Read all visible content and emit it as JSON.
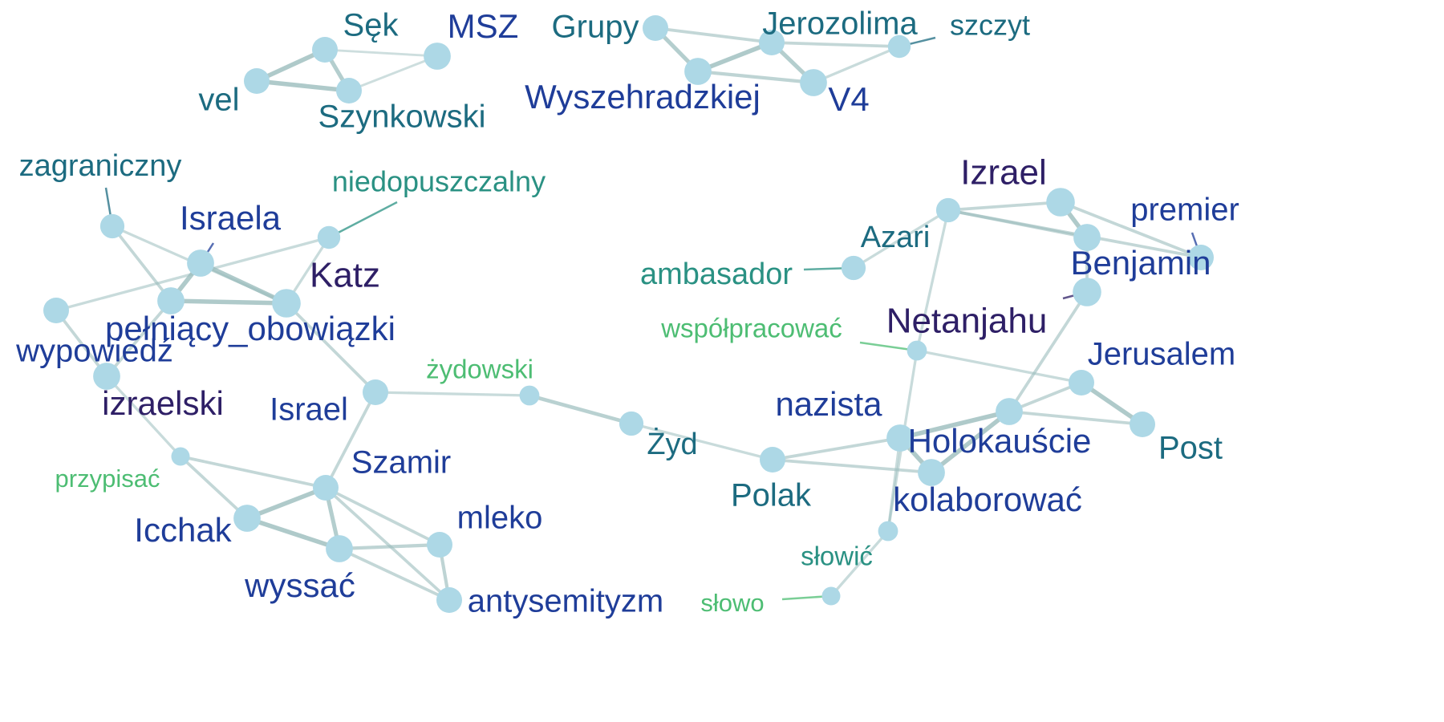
{
  "colors": {
    "node": "#add8e6",
    "edge": "#9bbdbd",
    "label_navy": "#1f3d99",
    "label_teal": "#1c6b80",
    "label_sea": "#2a9183",
    "label_green": "#4dbd73",
    "label_indigo": "#2e1f66"
  },
  "nodes": [
    {
      "id": "sek",
      "label": "Sęk",
      "size": 1.0,
      "color": "label_teal"
    },
    {
      "id": "msz",
      "label": "MSZ",
      "size": 1.1,
      "color": "label_navy"
    },
    {
      "id": "vel",
      "label": "vel",
      "size": 1.0,
      "color": "label_teal"
    },
    {
      "id": "szynkowski",
      "label": "Szynkowski",
      "size": 1.0,
      "color": "label_teal"
    },
    {
      "id": "grupy",
      "label": "Grupy",
      "size": 1.0,
      "color": "label_teal"
    },
    {
      "id": "jerozolima",
      "label": "Jerozolima",
      "size": 1.0,
      "color": "label_teal"
    },
    {
      "id": "szczyt",
      "label": "szczyt",
      "size": 0.8,
      "color": "label_teal"
    },
    {
      "id": "wyszehradzkiej",
      "label": "Wyszehradzkiej",
      "size": 1.1,
      "color": "label_navy"
    },
    {
      "id": "v4",
      "label": "V4",
      "size": 1.1,
      "color": "label_navy"
    },
    {
      "id": "zagraniczny",
      "label": "zagraniczny",
      "size": 0.9,
      "color": "label_teal"
    },
    {
      "id": "niedopuszczalny",
      "label": "niedopuszczalny",
      "size": 0.8,
      "color": "label_sea"
    },
    {
      "id": "israela",
      "label": "Israela",
      "size": 1.1,
      "color": "label_navy"
    },
    {
      "id": "katz",
      "label": "Katz",
      "size": 1.2,
      "color": "label_indigo"
    },
    {
      "id": "pelniacy",
      "label": "pełniący_obowiązki",
      "size": 1.1,
      "color": "label_navy"
    },
    {
      "id": "wypowiedz",
      "label": "wypowiedź",
      "size": 1.0,
      "color": "label_navy"
    },
    {
      "id": "izraelski",
      "label": "izraelski",
      "size": 1.1,
      "color": "label_indigo"
    },
    {
      "id": "israel",
      "label": "Israel",
      "size": 1.0,
      "color": "label_navy"
    },
    {
      "id": "zydowski",
      "label": "żydowski",
      "size": 0.6,
      "color": "label_green"
    },
    {
      "id": "zyd",
      "label": "Żyd",
      "size": 0.9,
      "color": "label_teal"
    },
    {
      "id": "przypisac",
      "label": "przypisać",
      "size": 0.5,
      "color": "label_green"
    },
    {
      "id": "szamir",
      "label": "Szamir",
      "size": 1.0,
      "color": "label_navy"
    },
    {
      "id": "icchak",
      "label": "Icchak",
      "size": 1.1,
      "color": "label_navy"
    },
    {
      "id": "mleko",
      "label": "mleko",
      "size": 1.0,
      "color": "label_navy"
    },
    {
      "id": "wyssac",
      "label": "wyssać",
      "size": 1.1,
      "color": "label_navy"
    },
    {
      "id": "antysemityzm",
      "label": "antysemityzm",
      "size": 1.0,
      "color": "label_navy"
    },
    {
      "id": "izrael",
      "label": "Izrael",
      "size": 1.2,
      "color": "label_indigo"
    },
    {
      "id": "premier",
      "label": "premier",
      "size": 1.0,
      "color": "label_navy"
    },
    {
      "id": "azari",
      "label": "Azari",
      "size": 0.9,
      "color": "label_teal"
    },
    {
      "id": "ambasador",
      "label": "ambasador",
      "size": 0.9,
      "color": "label_sea"
    },
    {
      "id": "benjamin",
      "label": "Benjamin",
      "size": 1.1,
      "color": "label_navy"
    },
    {
      "id": "netanjahu",
      "label": "Netanjahu",
      "size": 1.2,
      "color": "label_indigo"
    },
    {
      "id": "wspolpracowac",
      "label": "współpracować",
      "size": 0.6,
      "color": "label_green"
    },
    {
      "id": "jerusalem",
      "label": "Jerusalem",
      "size": 1.0,
      "color": "label_navy"
    },
    {
      "id": "nazista",
      "label": "nazista",
      "size": 1.1,
      "color": "label_navy"
    },
    {
      "id": "holokauscie",
      "label": "Holokauście",
      "size": 1.1,
      "color": "label_navy"
    },
    {
      "id": "post",
      "label": "Post",
      "size": 1.0,
      "color": "label_teal"
    },
    {
      "id": "polak",
      "label": "Polak",
      "size": 1.0,
      "color": "label_teal"
    },
    {
      "id": "kolaborowac",
      "label": "kolaborować",
      "size": 1.1,
      "color": "label_navy"
    },
    {
      "id": "slowic",
      "label": "słowić",
      "size": 0.6,
      "color": "label_sea"
    },
    {
      "id": "slowo",
      "label": "słowo",
      "size": 0.5,
      "color": "label_green"
    }
  ],
  "edges": [
    {
      "source": "sek",
      "target": "vel",
      "weight": 0.9
    },
    {
      "source": "sek",
      "target": "szynkowski",
      "weight": 0.8
    },
    {
      "source": "vel",
      "target": "szynkowski",
      "weight": 0.9
    },
    {
      "source": "sek",
      "target": "msz",
      "weight": 0.3
    },
    {
      "source": "szynkowski",
      "target": "msz",
      "weight": 0.3
    },
    {
      "source": "grupy",
      "target": "wyszehradzkiej",
      "weight": 0.8
    },
    {
      "source": "grupy",
      "target": "jerozolima",
      "weight": 0.5
    },
    {
      "source": "wyszehradzkiej",
      "target": "jerozolima",
      "weight": 0.9
    },
    {
      "source": "wyszehradzkiej",
      "target": "v4",
      "weight": 0.6
    },
    {
      "source": "jerozolima",
      "target": "v4",
      "weight": 0.8
    },
    {
      "source": "jerozolima",
      "target": "szczyt",
      "weight": 0.5
    },
    {
      "source": "v4",
      "target": "szczyt",
      "weight": 0.4
    },
    {
      "source": "zagraniczny",
      "target": "pelniacy",
      "weight": 0.5
    },
    {
      "source": "zagraniczny",
      "target": "katz",
      "weight": 0.4
    },
    {
      "source": "israela",
      "target": "pelniacy",
      "weight": 0.9
    },
    {
      "source": "israela",
      "target": "katz",
      "weight": 0.9
    },
    {
      "source": "pelniacy",
      "target": "katz",
      "weight": 0.9
    },
    {
      "source": "wypowiedz",
      "target": "niedopuszczalny",
      "weight": 0.4
    },
    {
      "source": "niedopuszczalny",
      "target": "katz",
      "weight": 0.4
    },
    {
      "source": "wypowiedz",
      "target": "izraelski",
      "weight": 0.5
    },
    {
      "source": "izraelski",
      "target": "przypisac",
      "weight": 0.4
    },
    {
      "source": "pelniacy",
      "target": "izraelski",
      "weight": 0.5
    },
    {
      "source": "katz",
      "target": "israel",
      "weight": 0.5
    },
    {
      "source": "israel",
      "target": "szamir",
      "weight": 0.5
    },
    {
      "source": "israel",
      "target": "zydowski",
      "weight": 0.4
    },
    {
      "source": "zydowski",
      "target": "zyd",
      "weight": 0.7
    },
    {
      "source": "przypisac",
      "target": "icchak",
      "weight": 0.5
    },
    {
      "source": "przypisac",
      "target": "szamir",
      "weight": 0.5
    },
    {
      "source": "icchak",
      "target": "szamir",
      "weight": 0.9
    },
    {
      "source": "icchak",
      "target": "wyssac",
      "weight": 0.9
    },
    {
      "source": "szamir",
      "target": "wyssac",
      "weight": 0.8
    },
    {
      "source": "szamir",
      "target": "mleko",
      "weight": 0.5
    },
    {
      "source": "szamir",
      "target": "antysemityzm",
      "weight": 0.5
    },
    {
      "source": "wyssac",
      "target": "mleko",
      "weight": 0.6
    },
    {
      "source": "mleko",
      "target": "antysemityzm",
      "weight": 0.6
    },
    {
      "source": "wyssac",
      "target": "antysemityzm",
      "weight": 0.5
    },
    {
      "source": "zyd",
      "target": "polak",
      "weight": 0.4
    },
    {
      "source": "polak",
      "target": "nazista",
      "weight": 0.5
    },
    {
      "source": "polak",
      "target": "kolaborowac",
      "weight": 0.5
    },
    {
      "source": "nazista",
      "target": "kolaborowac",
      "weight": 0.9
    },
    {
      "source": "nazista",
      "target": "holokauscie",
      "weight": 0.9
    },
    {
      "source": "kolaborowac",
      "target": "holokauscie",
      "weight": 0.9
    },
    {
      "source": "holokauscie",
      "target": "jerusalem",
      "weight": 0.5
    },
    {
      "source": "holokauscie",
      "target": "post",
      "weight": 0.5
    },
    {
      "source": "jerusalem",
      "target": "post",
      "weight": 0.9
    },
    {
      "source": "holokauscie",
      "target": "netanjahu",
      "weight": 0.5
    },
    {
      "source": "netanjahu",
      "target": "benjamin",
      "weight": 0.5
    },
    {
      "source": "benjamin",
      "target": "izrael",
      "weight": 0.9
    },
    {
      "source": "izrael",
      "target": "azari",
      "weight": 0.5
    },
    {
      "source": "azari",
      "target": "benjamin",
      "weight": 0.5
    },
    {
      "source": "izrael",
      "target": "premier",
      "weight": 0.5
    },
    {
      "source": "azari",
      "target": "premier",
      "weight": 0.5
    },
    {
      "source": "azari",
      "target": "ambasador",
      "weight": 0.4
    },
    {
      "source": "azari",
      "target": "wspolpracowac",
      "weight": 0.4
    },
    {
      "source": "wspolpracowac",
      "target": "jerusalem",
      "weight": 0.4
    },
    {
      "source": "wspolpracowac",
      "target": "slowic",
      "weight": 0.4
    },
    {
      "source": "nazista",
      "target": "slowic",
      "weight": 0.4
    },
    {
      "source": "slowic",
      "target": "slowo",
      "weight": 0.4
    }
  ]
}
